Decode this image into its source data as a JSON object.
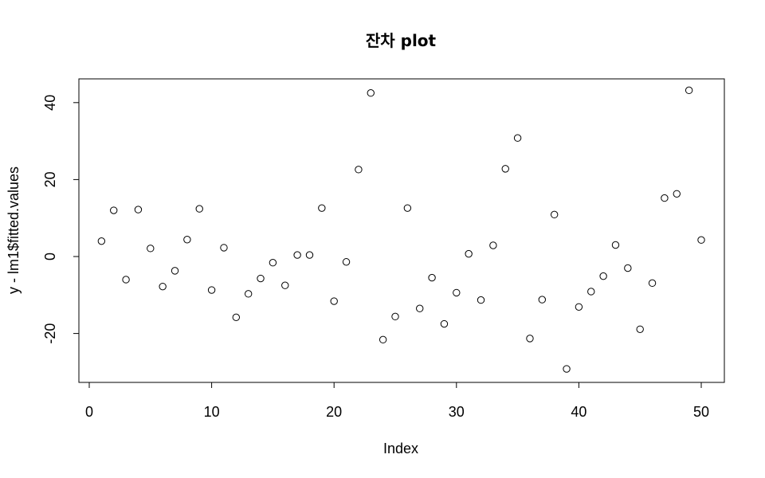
{
  "chart_data": {
    "type": "scatter",
    "title": "잔차 plot",
    "xlabel": "Index",
    "ylabel": "y - lm1$fitted.values",
    "xlim": [
      0,
      52
    ],
    "ylim": [
      -32,
      47
    ],
    "x_ticks": [
      0,
      10,
      20,
      30,
      40,
      50
    ],
    "y_ticks": [
      -20,
      0,
      20,
      40
    ],
    "grid": false,
    "legend": "none",
    "points": [
      {
        "x": 1,
        "y": 4.0
      },
      {
        "x": 2,
        "y": 12.0
      },
      {
        "x": 3,
        "y": -6.0
      },
      {
        "x": 4,
        "y": 12.2
      },
      {
        "x": 5,
        "y": 2.1
      },
      {
        "x": 6,
        "y": -7.8
      },
      {
        "x": 7,
        "y": -3.7
      },
      {
        "x": 8,
        "y": 4.4
      },
      {
        "x": 9,
        "y": 12.4
      },
      {
        "x": 10,
        "y": -8.7
      },
      {
        "x": 11,
        "y": 2.3
      },
      {
        "x": 12,
        "y": -15.8
      },
      {
        "x": 13,
        "y": -9.7
      },
      {
        "x": 14,
        "y": -5.7
      },
      {
        "x": 15,
        "y": -1.6
      },
      {
        "x": 16,
        "y": -7.5
      },
      {
        "x": 17,
        "y": 0.4
      },
      {
        "x": 18,
        "y": 0.4
      },
      {
        "x": 19,
        "y": 12.6
      },
      {
        "x": 20,
        "y": -11.6
      },
      {
        "x": 21,
        "y": -1.4
      },
      {
        "x": 22,
        "y": 22.6
      },
      {
        "x": 23,
        "y": 42.5
      },
      {
        "x": 24,
        "y": -21.6
      },
      {
        "x": 25,
        "y": -15.6
      },
      {
        "x": 26,
        "y": 12.6
      },
      {
        "x": 27,
        "y": -13.5
      },
      {
        "x": 28,
        "y": -5.5
      },
      {
        "x": 29,
        "y": -17.5
      },
      {
        "x": 30,
        "y": -9.4
      },
      {
        "x": 31,
        "y": 0.7
      },
      {
        "x": 32,
        "y": -11.3
      },
      {
        "x": 33,
        "y": 2.9
      },
      {
        "x": 34,
        "y": 22.8
      },
      {
        "x": 35,
        "y": 30.8
      },
      {
        "x": 36,
        "y": -21.3
      },
      {
        "x": 37,
        "y": -11.2
      },
      {
        "x": 38,
        "y": 10.9
      },
      {
        "x": 39,
        "y": -29.2
      },
      {
        "x": 40,
        "y": -13.1
      },
      {
        "x": 41,
        "y": -9.1
      },
      {
        "x": 42,
        "y": -5.1
      },
      {
        "x": 43,
        "y": 3.0
      },
      {
        "x": 44,
        "y": -3.0
      },
      {
        "x": 45,
        "y": -18.9
      },
      {
        "x": 46,
        "y": -6.9
      },
      {
        "x": 47,
        "y": 15.2
      },
      {
        "x": 48,
        "y": 16.3
      },
      {
        "x": 49,
        "y": 43.2
      },
      {
        "x": 50,
        "y": 4.3
      }
    ]
  }
}
